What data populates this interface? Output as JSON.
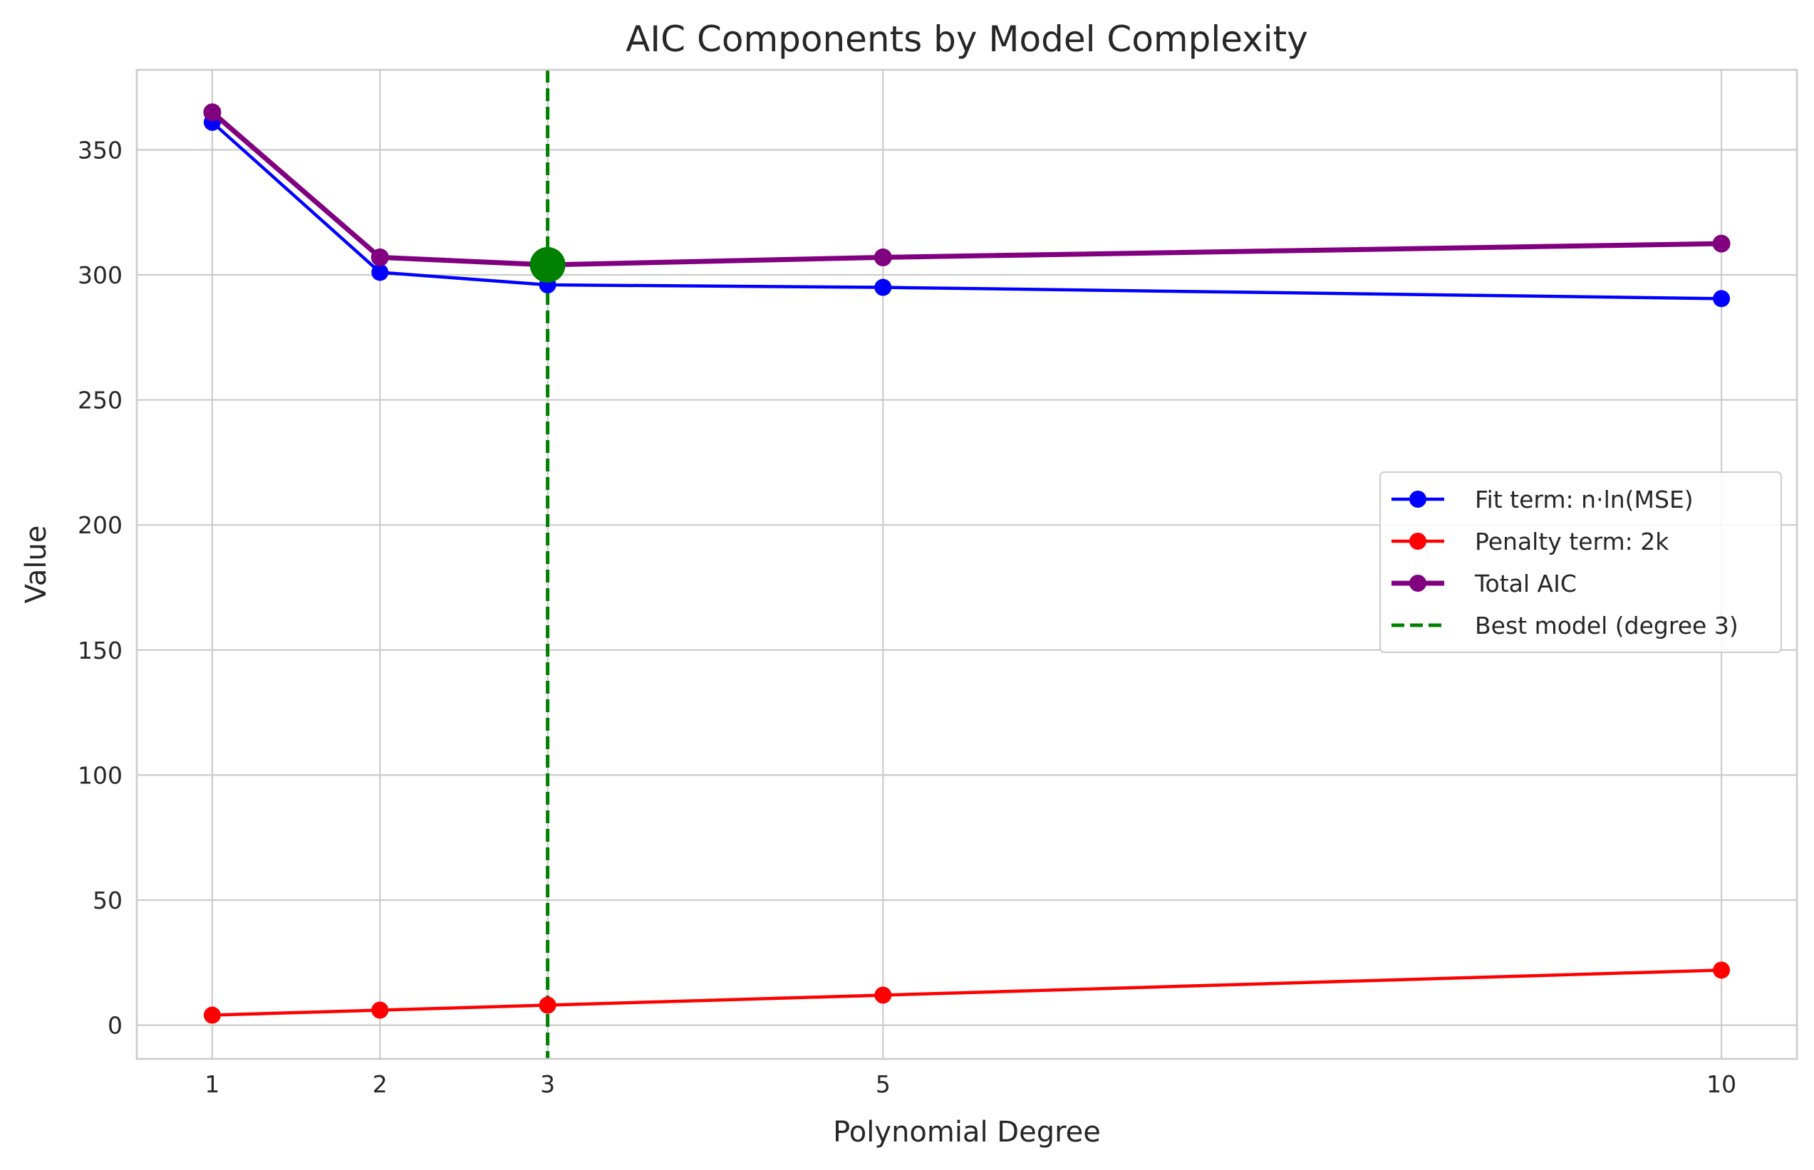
{
  "chart_data": {
    "type": "line",
    "title": "AIC Components by Model Complexity",
    "xlabel": "Polynomial Degree",
    "ylabel": "Value",
    "x": [
      1,
      2,
      3,
      5,
      10
    ],
    "xticks": [
      "1",
      "2",
      "3",
      "5",
      "10"
    ],
    "yticks": [
      "0",
      "50",
      "100",
      "150",
      "200",
      "250",
      "300",
      "350"
    ],
    "xlim": [
      0.55,
      10.45
    ],
    "ylim": [
      -13.5,
      382
    ],
    "grid": true,
    "legend_position": "center-right",
    "series": [
      {
        "name": "Fit term: n·ln(MSE)",
        "color": "#0000ff",
        "line_width": "normal",
        "values": [
          361,
          301,
          296,
          295,
          290.5
        ]
      },
      {
        "name": "Penalty term: 2k",
        "color": "#ff0000",
        "line_width": "normal",
        "values": [
          4,
          6,
          8,
          12,
          22
        ]
      },
      {
        "name": "Total AIC",
        "color": "#800080",
        "line_width": "thick",
        "values": [
          365,
          307,
          304,
          307,
          312.5
        ]
      }
    ],
    "reference_line": {
      "name": "Best model (degree 3)",
      "x": 3,
      "color": "#008000",
      "style": "dashed"
    },
    "highlight_point": {
      "x": 3,
      "y": 304,
      "color": "#008000"
    }
  }
}
